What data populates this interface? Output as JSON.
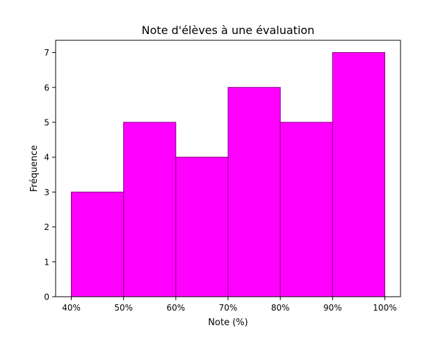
{
  "chart_data": {
    "type": "bar",
    "title": "Note d'élèves à une évaluation",
    "xlabel": "Note (%)",
    "ylabel": "Fréquence",
    "bins": [
      {
        "from": 40,
        "to": 50,
        "value": 3
      },
      {
        "from": 50,
        "to": 60,
        "value": 5
      },
      {
        "from": 60,
        "to": 70,
        "value": 4
      },
      {
        "from": 70,
        "to": 80,
        "value": 6
      },
      {
        "from": 80,
        "to": 90,
        "value": 5
      },
      {
        "from": 90,
        "to": 100,
        "value": 7
      }
    ],
    "xticks": [
      {
        "value": 40,
        "label": "40%"
      },
      {
        "value": 50,
        "label": "50%"
      },
      {
        "value": 60,
        "label": "60%"
      },
      {
        "value": 70,
        "label": "70%"
      },
      {
        "value": 80,
        "label": "80%"
      },
      {
        "value": 90,
        "label": "90%"
      },
      {
        "value": 100,
        "label": "100%"
      }
    ],
    "yticks": [
      0,
      1,
      2,
      3,
      4,
      5,
      6,
      7
    ],
    "xlim": [
      37,
      103
    ],
    "ylim": [
      0,
      7.35
    ],
    "grid": false,
    "legend": "none",
    "bar_color": "#ff00ff",
    "edge_color": "#800080"
  }
}
